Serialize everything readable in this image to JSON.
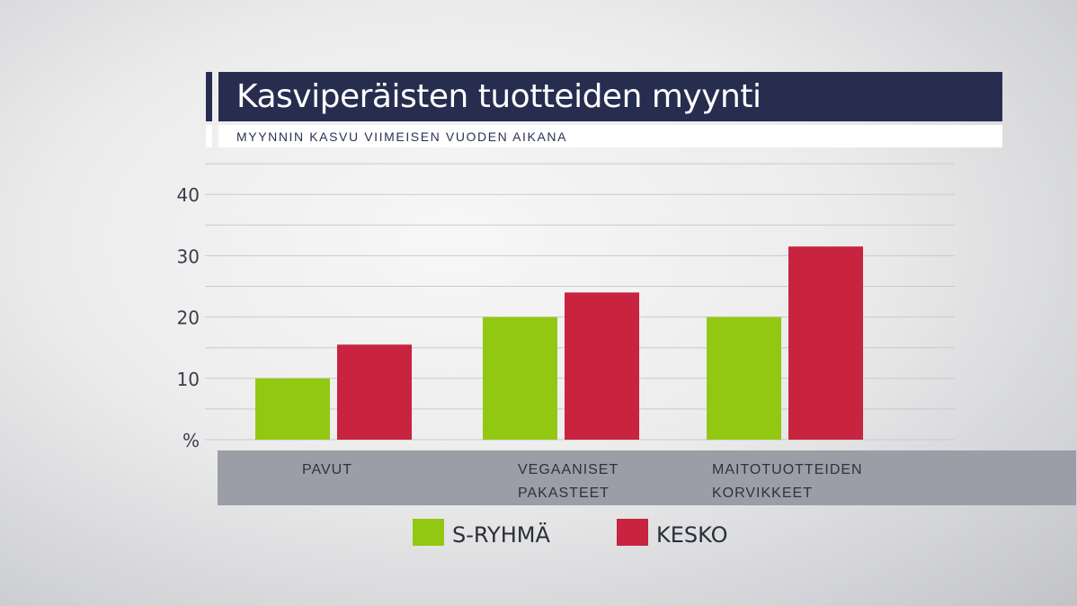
{
  "colors": {
    "title_bg": "#262d4f",
    "s_ryhma": "#92c812",
    "kesko": "#c8233f",
    "category_band": "#9b9ea6",
    "gridline": "#c9cacd"
  },
  "chart_data": {
    "type": "bar",
    "title": "Kasviperäisten tuotteiden myynti",
    "subtitle": "MYYNNIN KASVU VIIMEISEN VUODEN AIKANA",
    "categories": [
      [
        "PAVUT"
      ],
      [
        "VEGAANISET",
        "PAKASTEET"
      ],
      [
        "MAITOTUOTTEIDEN",
        "KORVIKKEET"
      ]
    ],
    "series": [
      {
        "name": "S-RYHMÄ",
        "values": [
          10,
          20,
          20
        ]
      },
      {
        "name": "KESKO",
        "values": [
          15.5,
          24,
          31.5
        ]
      }
    ],
    "y_ticks": [
      10,
      20,
      30,
      40
    ],
    "y_unit": "%",
    "ylim": [
      0,
      45
    ],
    "grid": true,
    "legend_position": "bottom"
  }
}
